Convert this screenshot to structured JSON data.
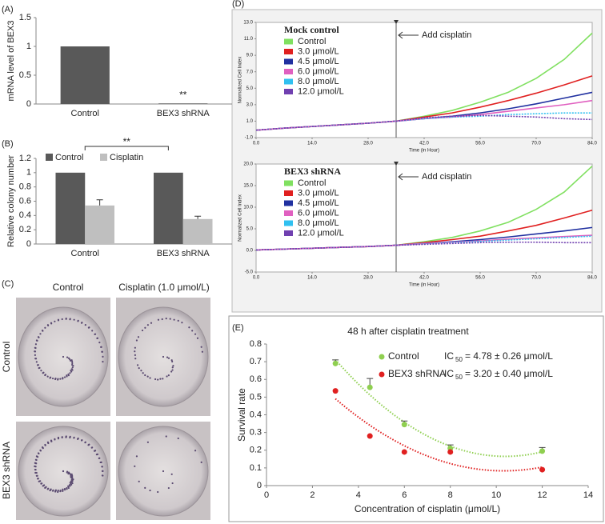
{
  "chart_data": [
    {
      "type": "bar",
      "label": "(A)",
      "ylabel": "mRNA level of BEX3",
      "categories": [
        "Control",
        "BEX3 shRNA"
      ],
      "values": [
        1,
        0.01
      ],
      "color": "#595959",
      "ylim": [
        0,
        1.5
      ],
      "yticks": [
        0,
        0.5,
        1,
        1.5
      ],
      "annotation": "**"
    },
    {
      "type": "bar",
      "label": "(B)",
      "ylabel": "Relative colony number",
      "categories": [
        "Control",
        "BEX3 shRNA"
      ],
      "series": [
        {
          "name": "Control",
          "color": "#595959",
          "values": [
            1,
            1
          ],
          "errors": [
            0,
            0
          ]
        },
        {
          "name": "Cisplatin",
          "color": "#bfbfbf",
          "values": [
            0.54,
            0.35
          ],
          "errors": [
            0.08,
            0.04
          ]
        }
      ],
      "ylim": [
        0,
        1.2
      ],
      "yticks": [
        0,
        0.2,
        0.4,
        0.6,
        0.8,
        1,
        1.2
      ],
      "annotation": "**"
    },
    {
      "type": "image",
      "label": "(C)",
      "column_labels": [
        "Control",
        "Cisplatin (1.0 μmol/L)"
      ],
      "row_labels": [
        "Control",
        "BEX3 shRNA"
      ]
    },
    {
      "type": "line",
      "label": "(D)",
      "title": "Mock control",
      "xlabel": "Time (in Hour)",
      "ylabel": "Normalized Cell Index",
      "annotation": {
        "text": "Add cisplatin",
        "x": 35
      },
      "x": [
        0,
        7,
        14,
        21,
        28,
        35,
        42,
        49,
        56,
        63,
        70,
        77,
        84
      ],
      "xlim": [
        0,
        84
      ],
      "xticks": [
        {
          "value": 0,
          "label": "0.0"
        },
        {
          "value": 14,
          "label": "14.0"
        },
        {
          "value": 28,
          "label": "28.0"
        },
        {
          "value": 42,
          "label": "42.0"
        },
        {
          "value": 56,
          "label": "56.0"
        },
        {
          "value": 70,
          "label": "70.0"
        },
        {
          "value": 84,
          "label": "84.0"
        }
      ],
      "ylim": [
        -1,
        13
      ],
      "yticks": [
        {
          "value": -1,
          "label": "-1.0"
        },
        {
          "value": 1,
          "label": "1.0"
        },
        {
          "value": 3,
          "label": "3.0"
        },
        {
          "value": 5,
          "label": "5.0"
        },
        {
          "value": 7,
          "label": "7.0"
        },
        {
          "value": 9,
          "label": "9.0"
        },
        {
          "value": 11,
          "label": "11.0"
        },
        {
          "value": 13,
          "label": "13.0"
        }
      ],
      "series": [
        {
          "name": "Control",
          "color": "#80e060",
          "values": [
            -0.1,
            0.15,
            0.35,
            0.55,
            0.75,
            1.0,
            1.6,
            2.3,
            3.3,
            4.5,
            6.2,
            8.5,
            11.7
          ]
        },
        {
          "name": "3.0 μmol/L",
          "color": "#e02020",
          "values": [
            -0.1,
            0.15,
            0.35,
            0.55,
            0.75,
            1.0,
            1.5,
            2.0,
            2.7,
            3.5,
            4.4,
            5.4,
            6.5
          ]
        },
        {
          "name": "4.5 μmol/L",
          "color": "#2030a0",
          "values": [
            -0.1,
            0.15,
            0.35,
            0.55,
            0.75,
            1.0,
            1.3,
            1.6,
            2.0,
            2.5,
            3.1,
            3.8,
            4.5
          ]
        },
        {
          "name": "6.0 μmol/L",
          "color": "#e060c0",
          "values": [
            -0.1,
            0.15,
            0.35,
            0.55,
            0.75,
            1.0,
            1.3,
            1.5,
            1.8,
            2.2,
            2.6,
            3.0,
            3.5
          ]
        },
        {
          "name": "8.0 μmol/L",
          "color": "#30c0f0",
          "values": [
            -0.1,
            0.15,
            0.35,
            0.55,
            0.75,
            1.0,
            1.3,
            1.5,
            1.6,
            1.8,
            1.9,
            2.0,
            2.0
          ]
        },
        {
          "name": "12.0 μmol/L",
          "color": "#7040b0",
          "values": [
            -0.1,
            0.15,
            0.35,
            0.55,
            0.75,
            1.0,
            1.4,
            1.6,
            1.7,
            1.6,
            1.5,
            1.3,
            1.2
          ]
        }
      ]
    },
    {
      "type": "line",
      "title": "BEX3  shRNA",
      "xlabel": "Time (in Hour)",
      "ylabel": "Normalized Cell Index",
      "annotation": {
        "text": "Add cisplatin",
        "x": 35
      },
      "x": [
        0,
        7,
        14,
        21,
        28,
        35,
        42,
        49,
        56,
        63,
        70,
        77,
        84
      ],
      "xlim": [
        0,
        84
      ],
      "xticks": [
        {
          "value": 0,
          "label": "0.0"
        },
        {
          "value": 14,
          "label": "14.0"
        },
        {
          "value": 28,
          "label": "28.0"
        },
        {
          "value": 42,
          "label": "42.0"
        },
        {
          "value": 56,
          "label": "56.0"
        },
        {
          "value": 70,
          "label": "70.0"
        },
        {
          "value": 84,
          "label": "84.0"
        }
      ],
      "ylim": [
        -5,
        20
      ],
      "yticks": [
        {
          "value": -5,
          "label": "-5.0"
        },
        {
          "value": 0,
          "label": "0.0"
        },
        {
          "value": 5,
          "label": "5.0"
        },
        {
          "value": 10,
          "label": "10.0"
        },
        {
          "value": 15,
          "label": "15.0"
        },
        {
          "value": 20,
          "label": "20.0"
        }
      ],
      "series": [
        {
          "name": "Control",
          "color": "#80e060",
          "values": [
            0.1,
            0.3,
            0.5,
            0.7,
            0.9,
            1.2,
            2.0,
            3.0,
            4.5,
            6.5,
            9.5,
            13.5,
            19.5
          ]
        },
        {
          "name": "3.0 μmol/L",
          "color": "#e02020",
          "values": [
            0.1,
            0.3,
            0.5,
            0.7,
            0.9,
            1.2,
            1.8,
            2.5,
            3.3,
            4.5,
            5.8,
            7.5,
            9.3
          ]
        },
        {
          "name": "4.5 μmol/L",
          "color": "#2030a0",
          "values": [
            0.1,
            0.3,
            0.5,
            0.7,
            0.9,
            1.2,
            1.6,
            2.0,
            2.5,
            3.1,
            3.8,
            4.5,
            5.3
          ]
        },
        {
          "name": "6.0 μmol/L",
          "color": "#e060c0",
          "values": [
            0.1,
            0.3,
            0.5,
            0.7,
            0.9,
            1.2,
            1.6,
            1.9,
            2.2,
            2.6,
            2.9,
            3.2,
            3.5
          ]
        },
        {
          "name": "8.0 μmol/L",
          "color": "#30c0f0",
          "values": [
            0.1,
            0.3,
            0.5,
            0.7,
            0.9,
            1.2,
            1.5,
            1.8,
            2.1,
            2.4,
            2.7,
            3.0,
            3.3
          ]
        },
        {
          "name": "12.0 μmol/L",
          "color": "#7040b0",
          "values": [
            0.1,
            0.3,
            0.5,
            0.7,
            0.9,
            1.2,
            1.4,
            1.6,
            1.8,
            1.9,
            1.9,
            1.8,
            1.8
          ]
        }
      ]
    },
    {
      "type": "scatter",
      "label": "(E)",
      "title": "48 h after cisplatin treatment",
      "xlabel": "Concentration of cisplatin (μmol/L)",
      "ylabel": "Survival rate",
      "x": [
        3,
        4.5,
        6,
        8,
        12
      ],
      "xlim": [
        0,
        14
      ],
      "xticks": [
        0,
        2,
        4,
        6,
        8,
        10,
        12,
        14
      ],
      "ylim": [
        0,
        0.8
      ],
      "yticks": [
        0,
        0.1,
        0.2,
        0.3,
        0.4,
        0.5,
        0.6,
        0.7,
        0.8
      ],
      "series": [
        {
          "name": "Control",
          "color": "#8fcf50",
          "values": [
            0.69,
            0.555,
            0.345,
            0.21,
            0.195
          ],
          "errors": [
            0.02,
            0.05,
            0.02,
            0.02,
            0.02
          ],
          "ic50": {
            "prefix": "IC",
            "sub": "50",
            "text": "= 4.78 ± 0.26 μmol/L"
          }
        },
        {
          "name": "BEX3 shRNA",
          "color": "#e02020",
          "values": [
            0.535,
            0.28,
            0.19,
            0.19,
            0.09
          ],
          "ic50": {
            "prefix": "IC",
            "sub": "50",
            "text": "= 3.20 ± 0.40 μmol/L"
          }
        }
      ]
    }
  ]
}
